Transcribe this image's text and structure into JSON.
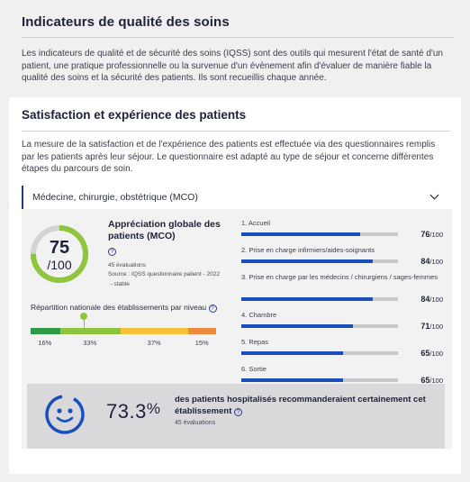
{
  "header": {
    "title": "Indicateurs de qualité des soins",
    "description": "Les indicateurs de qualité et de sécurité des soins (IQSS) sont des outils qui mesurent l'état de santé d'un patient, une pratique professionnelle ou la survenue d'un évènement afin d'évaluer de manière fiable la qualité des soins et la sécurité des patients. Ils sont recueillis chaque année."
  },
  "section": {
    "title": "Satisfaction et expérience des patients",
    "description": "La mesure de la satisfaction et de l'expérience des patients est effectuée via des questionnaires remplis par les patients après leur séjour. Le questionnaire est adapté au type de séjour et concerne différentes étapes du parcours de soin."
  },
  "accordion": {
    "label": "Médecine, chirurgie, obstétrique (MCO)",
    "icon": "chevron-down-icon"
  },
  "score": {
    "value": "75",
    "denominator": "/100",
    "fraction": 0.75,
    "ring_color": "#8fc53e",
    "title": "Appréciation globale des patients (MCO)",
    "help": "?",
    "evaluations": "45 évaluations",
    "source": "Source : IQSS questionnaire patient - 2022",
    "trend_arrow": "→",
    "trend": "stable"
  },
  "repartition": {
    "title": "Répartition nationale des établissements par niveau",
    "help": "?",
    "segments": [
      {
        "percent": "16%",
        "share": 16,
        "color": "#2e9a46"
      },
      {
        "percent": "33%",
        "share": 33,
        "color": "#8fc53e"
      },
      {
        "percent": "37%",
        "share": 37,
        "color": "#f5c33b"
      },
      {
        "percent": "15%",
        "share": 15,
        "color": "#ef8a3c"
      }
    ]
  },
  "criteria": [
    {
      "label": "1. Accueil",
      "score": "76",
      "suffix": "/100",
      "value": 76
    },
    {
      "label": "2. Prise en charge infirmiers/aides-soignants",
      "score": "84",
      "suffix": "/100",
      "value": 84
    },
    {
      "label": "3. Prise en charge par les médecins / chirurgiens / sages-femmes",
      "score": "84",
      "suffix": "/100",
      "value": 84
    },
    {
      "label": "4. Chambre",
      "score": "71",
      "suffix": "/100",
      "value": 71
    },
    {
      "label": "5. Repas",
      "score": "65",
      "suffix": "/100",
      "value": 65
    },
    {
      "label": "6. Sortie",
      "score": "65",
      "suffix": "/100",
      "value": 65
    }
  ],
  "recommendation": {
    "value": "73.3",
    "sign": "%",
    "text": "des patients hospitalisés recommanderaient certainement cet établissement",
    "help": "?",
    "evaluations": "45 évaluations",
    "icon": "smiley-icon",
    "accent": "#1a4fbb"
  }
}
